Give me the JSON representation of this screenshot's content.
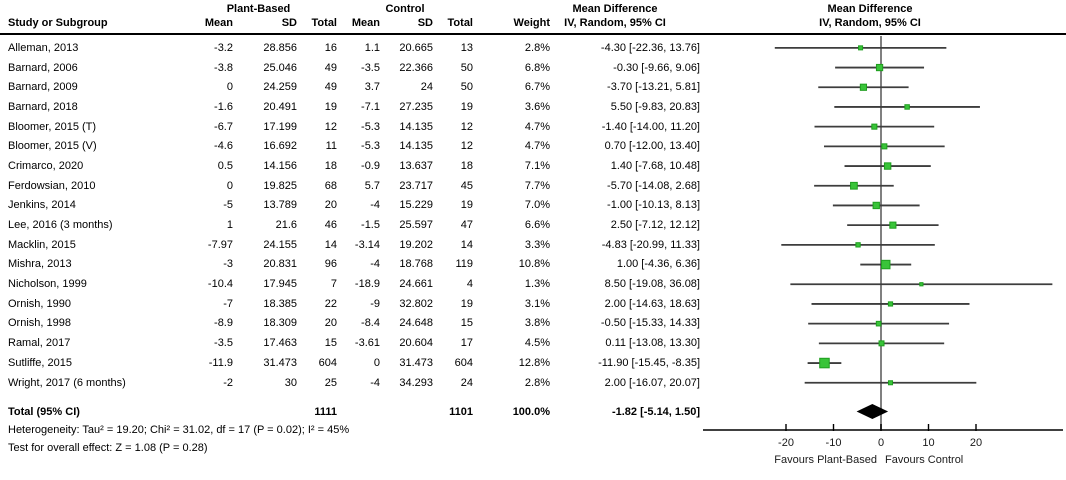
{
  "header": {
    "group1": "Plant-Based",
    "group2": "Control",
    "study_col": "Study or Subgroup",
    "mean": "Mean",
    "sd": "SD",
    "total": "Total",
    "weight": "Weight",
    "md_line1": "Mean Difference",
    "md_line2": "IV, Random, 95% CI"
  },
  "footer": {
    "heterogeneity": "Heterogeneity: Tau² = 19.20; Chi² = 31.02, df = 17 (P = 0.02); I² = 45%",
    "overall": "Test for overall effect: Z = 1.08 (P = 0.28)"
  },
  "chart_data": {
    "type": "forest",
    "effect_measure": "Mean Difference",
    "method": "IV, Random, 95% CI",
    "marker_color": "#39c439",
    "marker_border_color": "#1f9e1f",
    "ci_line_color": "#3d3d3d",
    "zero_line_color": "#808080",
    "diamond_color": "#000000",
    "x_axis": {
      "ticks": [
        -20,
        -10,
        0,
        10,
        20
      ],
      "range": [
        -37.5,
        38.5
      ],
      "label_left": "Favours Plant-Based",
      "label_right": "Favours Control"
    },
    "studies": [
      {
        "name": "Alleman, 2013",
        "mean1": "-3.2",
        "sd1": "28.856",
        "n1": "16",
        "mean2": "1.1",
        "sd2": "20.665",
        "n2": "13",
        "weight": "2.8%",
        "weight_value": 2.8,
        "ci_text": "-4.30 [-22.36, 13.76]",
        "md": -4.3,
        "lo": -22.36,
        "hi": 13.76
      },
      {
        "name": "Barnard, 2006",
        "mean1": "-3.8",
        "sd1": "25.046",
        "n1": "49",
        "mean2": "-3.5",
        "sd2": "22.366",
        "n2": "50",
        "weight": "6.8%",
        "weight_value": 6.8,
        "ci_text": "-0.30 [-9.66, 9.06]",
        "md": -0.3,
        "lo": -9.66,
        "hi": 9.06
      },
      {
        "name": "Barnard, 2009",
        "mean1": "0",
        "sd1": "24.259",
        "n1": "49",
        "mean2": "3.7",
        "sd2": "24",
        "n2": "50",
        "weight": "6.7%",
        "weight_value": 6.7,
        "ci_text": "-3.70 [-13.21, 5.81]",
        "md": -3.7,
        "lo": -13.21,
        "hi": 5.81
      },
      {
        "name": "Barnard, 2018",
        "mean1": "-1.6",
        "sd1": "20.491",
        "n1": "19",
        "mean2": "-7.1",
        "sd2": "27.235",
        "n2": "19",
        "weight": "3.6%",
        "weight_value": 3.6,
        "ci_text": "5.50 [-9.83, 20.83]",
        "md": 5.5,
        "lo": -9.83,
        "hi": 20.83
      },
      {
        "name": "Bloomer, 2015 (T)",
        "mean1": "-6.7",
        "sd1": "17.199",
        "n1": "12",
        "mean2": "-5.3",
        "sd2": "14.135",
        "n2": "12",
        "weight": "4.7%",
        "weight_value": 4.7,
        "ci_text": "-1.40 [-14.00, 11.20]",
        "md": -1.4,
        "lo": -14.0,
        "hi": 11.2
      },
      {
        "name": "Bloomer, 2015 (V)",
        "mean1": "-4.6",
        "sd1": "16.692",
        "n1": "11",
        "mean2": "-5.3",
        "sd2": "14.135",
        "n2": "12",
        "weight": "4.7%",
        "weight_value": 4.7,
        "ci_text": "0.70 [-12.00, 13.40]",
        "md": 0.7,
        "lo": -12.0,
        "hi": 13.4
      },
      {
        "name": "Crimarco, 2020",
        "mean1": "0.5",
        "sd1": "14.156",
        "n1": "18",
        "mean2": "-0.9",
        "sd2": "13.637",
        "n2": "18",
        "weight": "7.1%",
        "weight_value": 7.1,
        "ci_text": "1.40 [-7.68, 10.48]",
        "md": 1.4,
        "lo": -7.68,
        "hi": 10.48
      },
      {
        "name": "Ferdowsian, 2010",
        "mean1": "0",
        "sd1": "19.825",
        "n1": "68",
        "mean2": "5.7",
        "sd2": "23.717",
        "n2": "45",
        "weight": "7.7%",
        "weight_value": 7.7,
        "ci_text": "-5.70 [-14.08, 2.68]",
        "md": -5.7,
        "lo": -14.08,
        "hi": 2.68
      },
      {
        "name": "Jenkins, 2014",
        "mean1": "-5",
        "sd1": "13.789",
        "n1": "20",
        "mean2": "-4",
        "sd2": "15.229",
        "n2": "19",
        "weight": "7.0%",
        "weight_value": 7.0,
        "ci_text": "-1.00 [-10.13, 8.13]",
        "md": -1.0,
        "lo": -10.13,
        "hi": 8.13
      },
      {
        "name": "Lee, 2016 (3 months)",
        "mean1": "1",
        "sd1": "21.6",
        "n1": "46",
        "mean2": "-1.5",
        "sd2": "25.597",
        "n2": "47",
        "weight": "6.6%",
        "weight_value": 6.6,
        "ci_text": "2.50 [-7.12, 12.12]",
        "md": 2.5,
        "lo": -7.12,
        "hi": 12.12
      },
      {
        "name": "Macklin, 2015",
        "mean1": "-7.97",
        "sd1": "24.155",
        "n1": "14",
        "mean2": "-3.14",
        "sd2": "19.202",
        "n2": "14",
        "weight": "3.3%",
        "weight_value": 3.3,
        "ci_text": "-4.83 [-20.99, 11.33]",
        "md": -4.83,
        "lo": -20.99,
        "hi": 11.33
      },
      {
        "name": "Mishra, 2013",
        "mean1": "-3",
        "sd1": "20.831",
        "n1": "96",
        "mean2": "-4",
        "sd2": "18.768",
        "n2": "119",
        "weight": "10.8%",
        "weight_value": 10.8,
        "ci_text": "1.00 [-4.36, 6.36]",
        "md": 1.0,
        "lo": -4.36,
        "hi": 6.36
      },
      {
        "name": "Nicholson, 1999",
        "mean1": "-10.4",
        "sd1": "17.945",
        "n1": "7",
        "mean2": "-18.9",
        "sd2": "24.661",
        "n2": "4",
        "weight": "1.3%",
        "weight_value": 1.3,
        "ci_text": "8.50 [-19.08, 36.08]",
        "md": 8.5,
        "lo": -19.08,
        "hi": 36.08
      },
      {
        "name": "Ornish, 1990",
        "mean1": "-7",
        "sd1": "18.385",
        "n1": "22",
        "mean2": "-9",
        "sd2": "32.802",
        "n2": "19",
        "weight": "3.1%",
        "weight_value": 3.1,
        "ci_text": "2.00 [-14.63, 18.63]",
        "md": 2.0,
        "lo": -14.63,
        "hi": 18.63
      },
      {
        "name": "Ornish, 1998",
        "mean1": "-8.9",
        "sd1": "18.309",
        "n1": "20",
        "mean2": "-8.4",
        "sd2": "24.648",
        "n2": "15",
        "weight": "3.8%",
        "weight_value": 3.8,
        "ci_text": "-0.50 [-15.33, 14.33]",
        "md": -0.5,
        "lo": -15.33,
        "hi": 14.33
      },
      {
        "name": "Ramal, 2017",
        "mean1": "-3.5",
        "sd1": "17.463",
        "n1": "15",
        "mean2": "-3.61",
        "sd2": "20.604",
        "n2": "17",
        "weight": "4.5%",
        "weight_value": 4.5,
        "ci_text": "0.11 [-13.08, 13.30]",
        "md": 0.11,
        "lo": -13.08,
        "hi": 13.3
      },
      {
        "name": "Sutliffe, 2015",
        "mean1": "-11.9",
        "sd1": "31.473",
        "n1": "604",
        "mean2": "0",
        "sd2": "31.473",
        "n2": "604",
        "weight": "12.8%",
        "weight_value": 12.8,
        "ci_text": "-11.90 [-15.45, -8.35]",
        "md": -11.9,
        "lo": -15.45,
        "hi": -8.35
      },
      {
        "name": "Wright, 2017 (6 months)",
        "mean1": "-2",
        "sd1": "30",
        "n1": "25",
        "mean2": "-4",
        "sd2": "34.293",
        "n2": "24",
        "weight": "2.8%",
        "weight_value": 2.8,
        "ci_text": "2.00 [-16.07, 20.07]",
        "md": 2.0,
        "lo": -16.07,
        "hi": 20.07
      }
    ],
    "total": {
      "label": "Total (95% CI)",
      "n1": "1111",
      "n2": "1101",
      "weight": "100.0%",
      "ci_text": "-1.82 [-5.14, 1.50]",
      "md": -1.82,
      "lo": -5.14,
      "hi": 1.5
    }
  }
}
